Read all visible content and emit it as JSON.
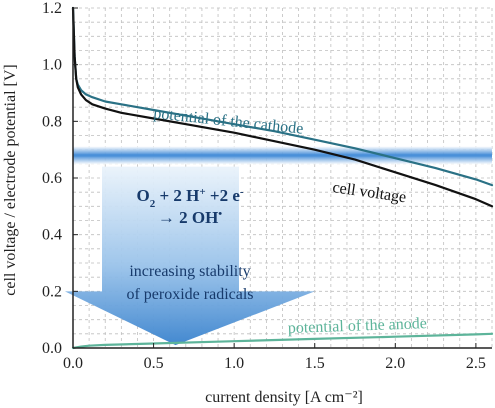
{
  "chart_data": {
    "type": "line",
    "title": "",
    "xlabel": "current density [A cm⁻²]",
    "ylabel": "cell voltage / electrode potential [V]",
    "xlim": [
      0.0,
      2.6
    ],
    "ylim": [
      0.0,
      1.2
    ],
    "x_ticks": [
      "0.0",
      "0.5",
      "1.0",
      "1.5",
      "2.0",
      "2.5"
    ],
    "y_ticks": [
      "0.0",
      "0.2",
      "0.4",
      "0.6",
      "0.8",
      "1.0",
      "1.2"
    ],
    "grid": true,
    "series": [
      {
        "name": "potential of the cathode",
        "color": "#2a7185",
        "x": [
          0.0,
          0.01,
          0.02,
          0.03,
          0.05,
          0.08,
          0.12,
          0.2,
          0.3,
          0.5,
          0.75,
          1.0,
          1.25,
          1.5,
          1.75,
          2.0,
          2.25,
          2.5,
          2.6
        ],
        "y": [
          1.2,
          1.03,
          0.95,
          0.93,
          0.91,
          0.895,
          0.885,
          0.87,
          0.86,
          0.84,
          0.815,
          0.79,
          0.765,
          0.735,
          0.705,
          0.67,
          0.635,
          0.595,
          0.575
        ]
      },
      {
        "name": "cell voltage",
        "color": "#111111",
        "x": [
          0.0,
          0.01,
          0.02,
          0.03,
          0.05,
          0.08,
          0.12,
          0.2,
          0.3,
          0.5,
          0.75,
          1.0,
          1.25,
          1.5,
          1.75,
          2.0,
          2.25,
          2.5,
          2.6
        ],
        "y": [
          1.2,
          1.03,
          0.95,
          0.92,
          0.895,
          0.875,
          0.86,
          0.845,
          0.83,
          0.81,
          0.785,
          0.76,
          0.73,
          0.7,
          0.665,
          0.62,
          0.575,
          0.525,
          0.5
        ]
      },
      {
        "name": "potential of the anode",
        "color": "#5db49a",
        "x": [
          0.0,
          0.05,
          0.1,
          0.2,
          0.5,
          1.0,
          1.5,
          2.0,
          2.5,
          2.6
        ],
        "y": [
          0.0,
          0.005,
          0.008,
          0.011,
          0.016,
          0.024,
          0.032,
          0.04,
          0.048,
          0.05
        ]
      }
    ],
    "annotations": {
      "threshold_band_y": 0.68,
      "reaction_line1_main": "O",
      "reaction_line1_sub": "2",
      "reaction_line1_mid": " + 2 H",
      "reaction_line1_sup1": "+",
      "reaction_line1_mid2": " +2 e",
      "reaction_line1_sup2": "-",
      "reaction_line2_main": "→ 2 OH",
      "reaction_line2_sup": "•",
      "stability_line1": "increasing stability",
      "stability_line2": "of peroxide radicals"
    },
    "colors": {
      "grid": "#bfbfbf",
      "axis": "#222222",
      "band": "#4a90d9",
      "arrow_top": "#eaf3fb",
      "arrow_bottom": "#3f86cf",
      "overlay_text": "#173a6b"
    }
  }
}
